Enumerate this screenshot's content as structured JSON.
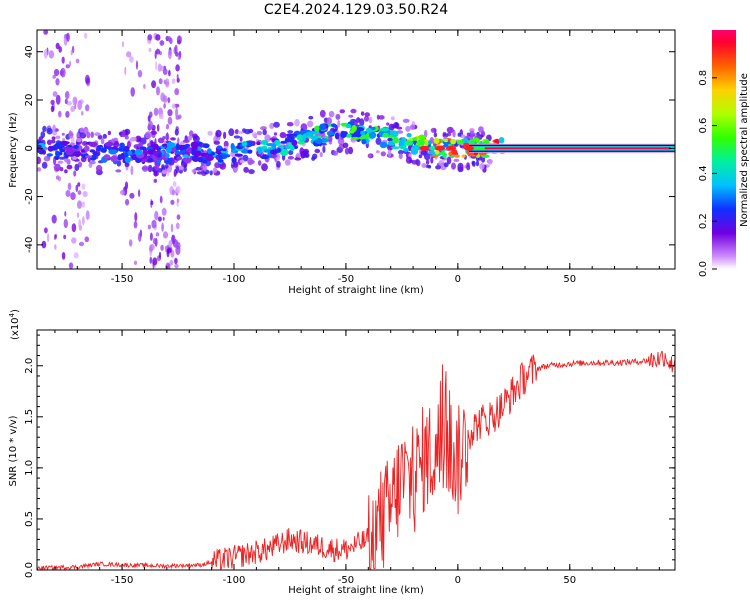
{
  "title": "C2E4.2024.129.03.50.R24",
  "chart_data": [
    {
      "type": "heatmap",
      "xlabel": "Height of straight line (km)",
      "ylabel": "Frequency (Hz)",
      "xlim": [
        -188,
        97
      ],
      "ylim": [
        -50,
        49
      ],
      "xticks": [
        -150,
        -100,
        -50,
        0,
        50
      ],
      "xtick_labels": [
        "-150",
        "-100",
        "-50",
        "0",
        "50"
      ],
      "yticks": [
        -40,
        -20,
        0,
        20,
        40
      ],
      "ytick_labels": [
        "-40",
        "-20",
        "0",
        "20",
        "40"
      ],
      "ridge": {
        "x": [
          -188,
          -170,
          -150,
          -130,
          -110,
          -90,
          -70,
          -60,
          -50,
          -40,
          -30,
          -20,
          -10,
          0,
          10,
          20,
          40,
          60,
          80,
          95
        ],
        "frequency": [
          0,
          -1,
          -2,
          -2,
          -2,
          -1,
          3,
          6,
          7,
          6,
          4,
          2,
          0,
          0,
          0,
          0,
          0,
          0,
          0,
          0
        ],
        "amplitude": [
          0.35,
          0.25,
          0.3,
          0.3,
          0.35,
          0.38,
          0.45,
          0.5,
          0.55,
          0.5,
          0.55,
          0.65,
          0.8,
          0.85,
          0.9,
          0.95,
          0.95,
          0.95,
          0.95,
          0.9
        ]
      },
      "colorbar": {
        "label": "Normalized spectral amplitude",
        "range": [
          0,
          1
        ],
        "ticks": [
          0.0,
          0.2,
          0.4,
          0.6,
          0.8
        ],
        "tick_labels": [
          "0.0",
          "0.2",
          "0.4",
          "0.6",
          "0.8"
        ]
      }
    },
    {
      "type": "line",
      "xlabel": "Height of straight line (km)",
      "ylabel": "SNR (10 * v/v)",
      "y_multiplier": "(x10",
      "y_multiplier_exp": "4",
      "y_multiplier_close": ")",
      "xlim": [
        -188,
        97
      ],
      "ylim": [
        0,
        2.35
      ],
      "xticks": [
        -150,
        -100,
        -50,
        0,
        50
      ],
      "xtick_labels": [
        "-150",
        "-100",
        "-50",
        "0",
        "50"
      ],
      "yticks": [
        0.0,
        0.5,
        1.0,
        1.5,
        2.0
      ],
      "ytick_labels": [
        "0.0",
        "0.5",
        "1.0",
        "1.5",
        "2.0"
      ],
      "series": [
        {
          "name": "SNR",
          "color": "#ee2222",
          "x": [
            -188,
            -170,
            -160,
            -150,
            -130,
            -115,
            -105,
            -95,
            -85,
            -75,
            -65,
            -55,
            -50,
            -45,
            -40,
            -35,
            -30,
            -25,
            -20,
            -15,
            -10,
            -5,
            0,
            5,
            10,
            15,
            20,
            25,
            30,
            35,
            40,
            50,
            60,
            70,
            80,
            85,
            90,
            93,
            95,
            97
          ],
          "values": [
            0.02,
            0.03,
            0.06,
            0.05,
            0.04,
            0.05,
            0.1,
            0.15,
            0.2,
            0.3,
            0.25,
            0.2,
            0.2,
            0.25,
            0.3,
            0.45,
            0.6,
            0.9,
            0.85,
            1.1,
            1.15,
            1.25,
            1.05,
            1.35,
            1.45,
            1.5,
            1.6,
            1.75,
            1.9,
            1.97,
            2.0,
            2.02,
            2.03,
            2.03,
            2.04,
            2.05,
            2.07,
            2.1,
            2.0,
            2.05
          ]
        }
      ]
    }
  ]
}
